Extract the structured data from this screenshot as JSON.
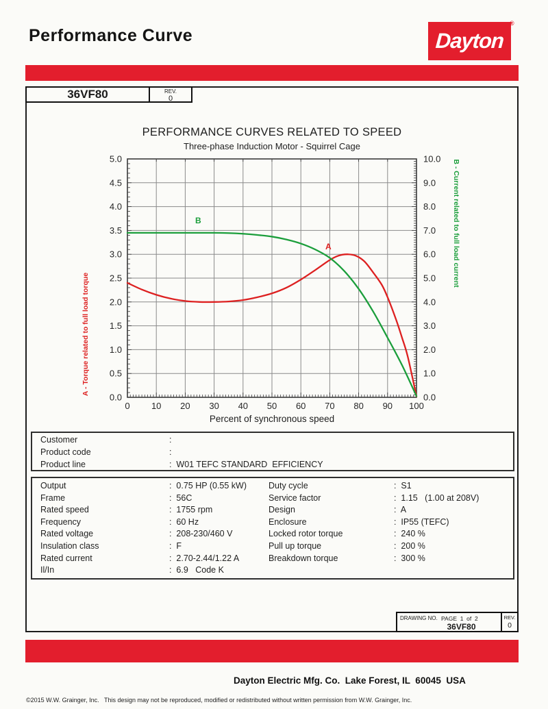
{
  "colors": {
    "brand_red": "#e31e2d",
    "curve_red": "#dd2020",
    "curve_green": "#1b9e3b"
  },
  "header": {
    "title": "Performance Curve",
    "logo_text": "Dayton",
    "registered_mark": "®"
  },
  "model_box": {
    "model": "36VF80",
    "rev_label": "REV.",
    "rev_value": "0"
  },
  "chart_data": {
    "type": "line",
    "title": "PERFORMANCE CURVES RELATED TO SPEED",
    "subtitle": "Three-phase Induction Motor - Squirrel Cage",
    "xlabel": "Percent of synchronous speed",
    "xlim": [
      0,
      100
    ],
    "x_ticks": [
      0,
      10,
      20,
      30,
      40,
      50,
      60,
      70,
      80,
      90,
      100
    ],
    "grid": true,
    "left_axis": {
      "label": "A - Torque related to full load torque",
      "lim": [
        0,
        5
      ],
      "tick_step": 0.5,
      "color": "#dd2020"
    },
    "right_axis": {
      "label": "B - Current related to full load current",
      "lim": [
        0,
        10
      ],
      "tick_step": 1.0,
      "color": "#1b9e3b"
    },
    "series": [
      {
        "name": "A",
        "description": "Torque related to full load torque",
        "axis": "left",
        "color": "#dd2020",
        "label_at": [
          69.5,
          3.1
        ],
        "points": [
          [
            0,
            2.4
          ],
          [
            5,
            2.26
          ],
          [
            10,
            2.15
          ],
          [
            15,
            2.07
          ],
          [
            20,
            2.02
          ],
          [
            25,
            2.0
          ],
          [
            30,
            2.0
          ],
          [
            35,
            2.01
          ],
          [
            40,
            2.04
          ],
          [
            45,
            2.1
          ],
          [
            50,
            2.18
          ],
          [
            55,
            2.3
          ],
          [
            60,
            2.47
          ],
          [
            65,
            2.67
          ],
          [
            70,
            2.88
          ],
          [
            73,
            2.97
          ],
          [
            76,
            3.0
          ],
          [
            79,
            2.97
          ],
          [
            82,
            2.85
          ],
          [
            85,
            2.62
          ],
          [
            88,
            2.36
          ],
          [
            90,
            2.1
          ],
          [
            93,
            1.62
          ],
          [
            95,
            1.25
          ],
          [
            97,
            0.85
          ],
          [
            100,
            0.02
          ]
        ]
      },
      {
        "name": "B",
        "description": "Current related to full load current",
        "axis": "right",
        "color": "#1b9e3b",
        "label_at": [
          24.5,
          7.3
        ],
        "points": [
          [
            0,
            6.9
          ],
          [
            10,
            6.9
          ],
          [
            20,
            6.9
          ],
          [
            30,
            6.9
          ],
          [
            35,
            6.89
          ],
          [
            40,
            6.86
          ],
          [
            45,
            6.81
          ],
          [
            50,
            6.74
          ],
          [
            55,
            6.62
          ],
          [
            60,
            6.45
          ],
          [
            65,
            6.2
          ],
          [
            70,
            5.85
          ],
          [
            75,
            5.3
          ],
          [
            80,
            4.55
          ],
          [
            85,
            3.6
          ],
          [
            90,
            2.5
          ],
          [
            95,
            1.35
          ],
          [
            100,
            0.05
          ]
        ]
      }
    ]
  },
  "customer_table": {
    "rows": [
      {
        "label": "Customer",
        "value": ":"
      },
      {
        "label": "Product code",
        "value": ":"
      },
      {
        "label": "Product line",
        "value": ":  W01 TEFC STANDARD  EFFICIENCY"
      }
    ]
  },
  "spec_table": {
    "left": [
      {
        "label": "Output",
        "value": ":  0.75 HP (0.55 kW)"
      },
      {
        "label": "Frame",
        "value": ":  56C"
      },
      {
        "label": "Rated speed",
        "value": ":  1755 rpm"
      },
      {
        "label": "Frequency",
        "value": ":  60 Hz"
      },
      {
        "label": "Rated voltage",
        "value": ":  208-230/460 V"
      },
      {
        "label": "Insulation class",
        "value": ":  F"
      },
      {
        "label": "Rated current",
        "value": ":  2.70-2.44/1.22 A"
      },
      {
        "label": "Il/In",
        "value": ":  6.9   Code K"
      }
    ],
    "right": [
      {
        "label": "Duty cycle",
        "value": ":  S1"
      },
      {
        "label": "Service factor",
        "value": ":  1.15   (1.00 at 208V)"
      },
      {
        "label": "Design",
        "value": ":  A"
      },
      {
        "label": "Enclosure",
        "value": ":  IP55 (TEFC)"
      },
      {
        "label": "Locked rotor torque",
        "value": ":  240 %"
      },
      {
        "label": "Pull up torque",
        "value": ":  200 %"
      },
      {
        "label": "Breakdown torque",
        "value": ":  300 %"
      }
    ]
  },
  "drawing_box": {
    "drawing_no_label": "DRAWING NO.",
    "page_label": "PAGE  1  of  2",
    "number": "36VF80",
    "rev_label": "REV.",
    "rev_value": "0"
  },
  "footer": {
    "address": "Dayton Electric Mfg. Co.  Lake Forest, IL  60045  USA",
    "copyright": "©2015 W.W. Grainger, Inc.   This design may not be reproduced, modified or redistributed without written permission from W.W. Grainger, Inc."
  }
}
